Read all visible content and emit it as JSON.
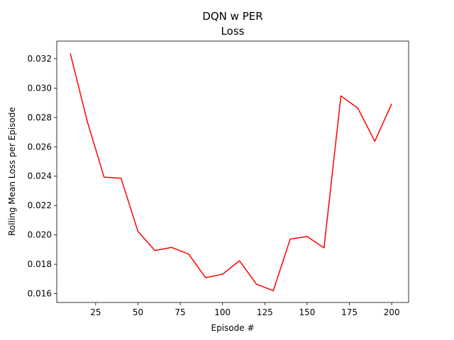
{
  "chart_data": {
    "type": "line",
    "title": "DQN w PER",
    "subtitle": "Loss",
    "xlabel": "Episode #",
    "ylabel": "Rolling Mean Loss per Episode",
    "xlim": [
      2,
      210
    ],
    "ylim": [
      0.0154,
      0.0332
    ],
    "xticks": [
      25,
      50,
      75,
      100,
      125,
      150,
      175,
      200
    ],
    "yticks": [
      0.016,
      0.018,
      0.02,
      0.022,
      0.024,
      0.026,
      0.028,
      0.03,
      0.032
    ],
    "ytick_labels": [
      "0.016",
      "0.018",
      "0.020",
      "0.022",
      "0.024",
      "0.026",
      "0.028",
      "0.030",
      "0.032"
    ],
    "grid": false,
    "series": [
      {
        "color": "#ff0000",
        "x": [
          10,
          20,
          30,
          40,
          50,
          60,
          70,
          80,
          90,
          100,
          110,
          120,
          130,
          140,
          150,
          160,
          170,
          180,
          190,
          200
        ],
        "y": [
          0.03236,
          0.02775,
          0.02393,
          0.02386,
          0.02024,
          0.01894,
          0.01915,
          0.01869,
          0.01709,
          0.01732,
          0.01824,
          0.01665,
          0.0162,
          0.01971,
          0.01989,
          0.01912,
          0.02947,
          0.02863,
          0.02637,
          0.02893
        ]
      }
    ]
  }
}
